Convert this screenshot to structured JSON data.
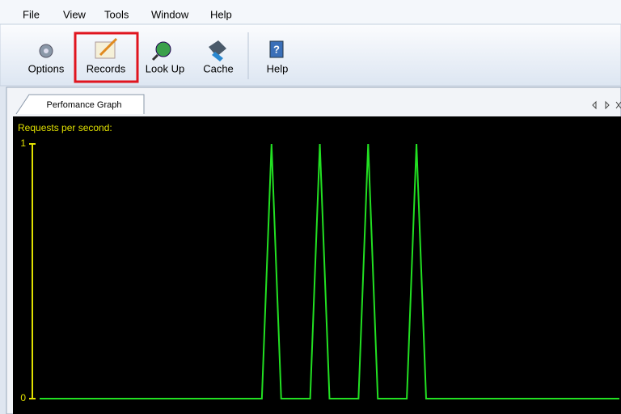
{
  "menu": [
    "File",
    "View",
    "Tools",
    "Window",
    "Help"
  ],
  "toolbar": [
    "Options",
    "Records",
    "Look Up",
    "Cache",
    "Help"
  ],
  "tab": "Perfomance Graph",
  "chart_data": {
    "type": "line",
    "title": "Requests per second:",
    "values": [
      0,
      0,
      0,
      0,
      0,
      0,
      0,
      0,
      0,
      0,
      0,
      0,
      0,
      0,
      0,
      0,
      0,
      0,
      0,
      0,
      0,
      0,
      0,
      0,
      1,
      0,
      0,
      0,
      0,
      1,
      0,
      0,
      0,
      0,
      1,
      0,
      0,
      0,
      0,
      1,
      0,
      0,
      0,
      0,
      0,
      0,
      0,
      0,
      0,
      0,
      0,
      0,
      0,
      0,
      0,
      0,
      0,
      0,
      0,
      0,
      0
    ],
    "color": "#22e022",
    "axis_color": "#e0e000",
    "ylim": [
      0,
      1
    ],
    "yticks": [
      0,
      1
    ]
  }
}
